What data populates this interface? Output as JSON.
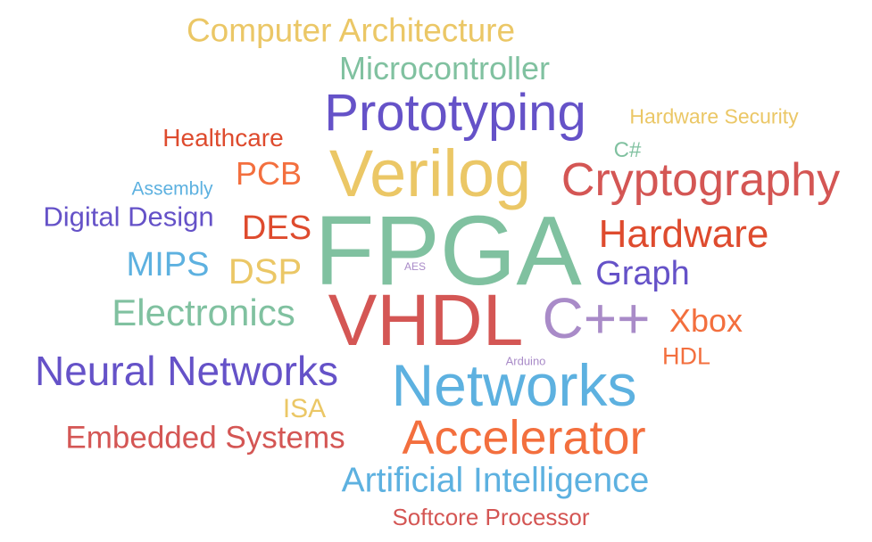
{
  "words": [
    {
      "id": "computer-architecture",
      "text": "Computer Architecture",
      "color": "#ebc766"
    },
    {
      "id": "microcontroller",
      "text": "Microcontroller",
      "color": "#80c1a0"
    },
    {
      "id": "prototyping",
      "text": "Prototyping",
      "color": "#6552c8"
    },
    {
      "id": "hardware-security",
      "text": "Hardware Security",
      "color": "#ebc766"
    },
    {
      "id": "healthcare",
      "text": "Healthcare",
      "color": "#de4b2e"
    },
    {
      "id": "csharp",
      "text": "C#",
      "color": "#80c1a0"
    },
    {
      "id": "pcb",
      "text": "PCB",
      "color": "#f36f3e"
    },
    {
      "id": "verilog",
      "text": "Verilog",
      "color": "#ebc766"
    },
    {
      "id": "cryptography",
      "text": "Cryptography",
      "color": "#d45654"
    },
    {
      "id": "assembly",
      "text": "Assembly",
      "color": "#5db1e0"
    },
    {
      "id": "digital-design",
      "text": "Digital Design",
      "color": "#6552c8"
    },
    {
      "id": "des",
      "text": "DES",
      "color": "#de4b2e"
    },
    {
      "id": "fpga",
      "text": "FPGA",
      "color": "#80c1a0"
    },
    {
      "id": "hardware",
      "text": "Hardware",
      "color": "#de4b2e"
    },
    {
      "id": "mips",
      "text": "MIPS",
      "color": "#5db1e0"
    },
    {
      "id": "dsp",
      "text": "DSP",
      "color": "#ebc766"
    },
    {
      "id": "aes",
      "text": "AES",
      "color": "#a98bc8"
    },
    {
      "id": "graph",
      "text": "Graph",
      "color": "#6552c8"
    },
    {
      "id": "electronics",
      "text": "Electronics",
      "color": "#80c1a0"
    },
    {
      "id": "vhdl",
      "text": "VHDL",
      "color": "#d45654"
    },
    {
      "id": "cpp",
      "text": "C++",
      "color": "#a98bc8"
    },
    {
      "id": "xbox",
      "text": "Xbox",
      "color": "#f36f3e"
    },
    {
      "id": "hdl",
      "text": "HDL",
      "color": "#f36f3e"
    },
    {
      "id": "arduino",
      "text": "Arduino",
      "color": "#a98bc8"
    },
    {
      "id": "neural-networks",
      "text": "Neural Networks",
      "color": "#6552c8"
    },
    {
      "id": "networks",
      "text": "Networks",
      "color": "#5db1e0"
    },
    {
      "id": "isa",
      "text": "ISA",
      "color": "#ebc766"
    },
    {
      "id": "embedded-systems",
      "text": "Embedded Systems",
      "color": "#d45654"
    },
    {
      "id": "accelerator",
      "text": "Accelerator",
      "color": "#f36f3e"
    },
    {
      "id": "artificial-intelligence",
      "text": "Artificial Intelligence",
      "color": "#5db1e0"
    },
    {
      "id": "softcore-processor",
      "text": "Softcore Processor",
      "color": "#d45654"
    }
  ]
}
